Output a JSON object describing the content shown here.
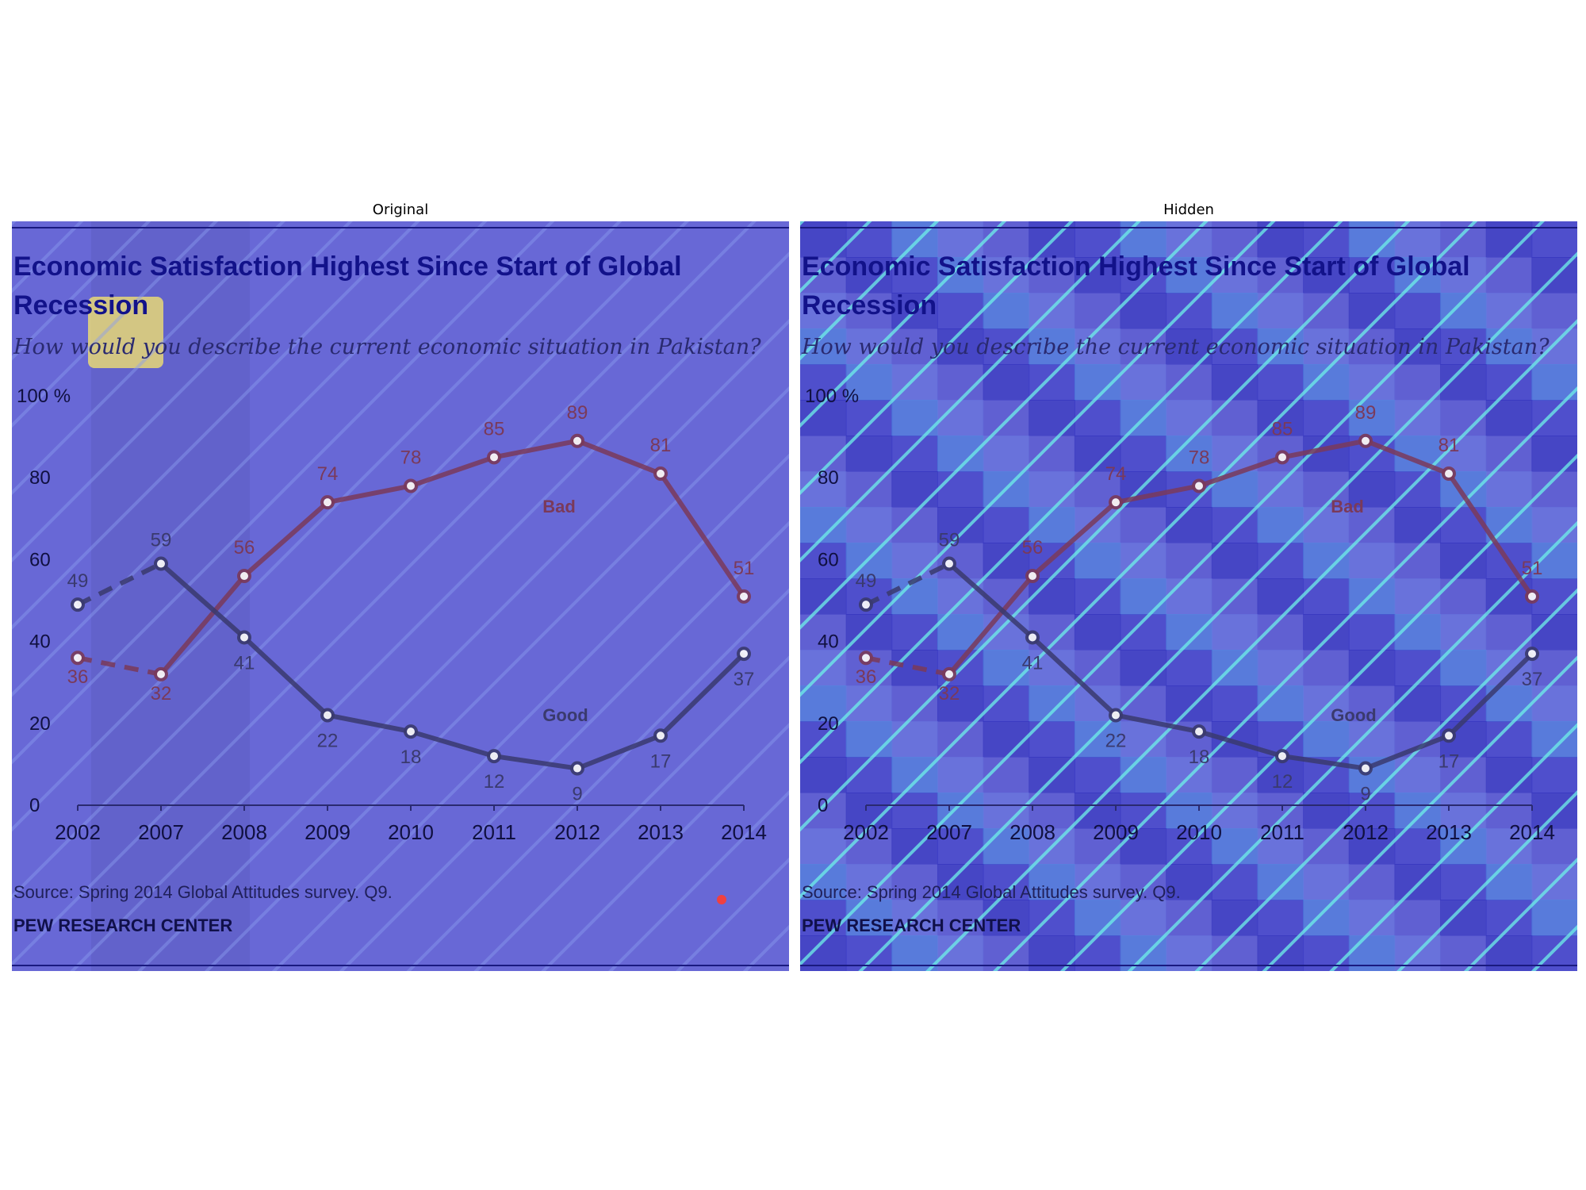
{
  "panels": {
    "left_title": "Original",
    "right_title": "Hidden"
  },
  "chart": {
    "title_line1": "Economic Satisfaction Highest Since Start of Global",
    "title_line2": "Recession",
    "subtitle": "How would you describe the current economic situation in Pakistan?",
    "source": "Source: Spring 2014 Global Attitudes survey. Q9.",
    "org": "PEW RESEARCH CENTER",
    "y_top_label": "100 %"
  },
  "colors": {
    "bad": "#7a3a5a",
    "good": "#3a3a6e",
    "title": "#12128a",
    "overlay_base": "#6a6ad8"
  },
  "chart_data": {
    "type": "line",
    "categories": [
      "2002",
      "2007",
      "2008",
      "2009",
      "2010",
      "2011",
      "2012",
      "2013",
      "2014"
    ],
    "series": [
      {
        "name": "Bad",
        "values": [
          36,
          32,
          56,
          74,
          78,
          85,
          89,
          81,
          51
        ]
      },
      {
        "name": "Good",
        "values": [
          49,
          59,
          41,
          22,
          18,
          12,
          9,
          17,
          37
        ]
      }
    ],
    "dashed_first_segment": true,
    "yticks": [
      0,
      20,
      40,
      60,
      80
    ],
    "ylim": [
      0,
      100
    ],
    "grid": false,
    "legend": "inline labels"
  }
}
